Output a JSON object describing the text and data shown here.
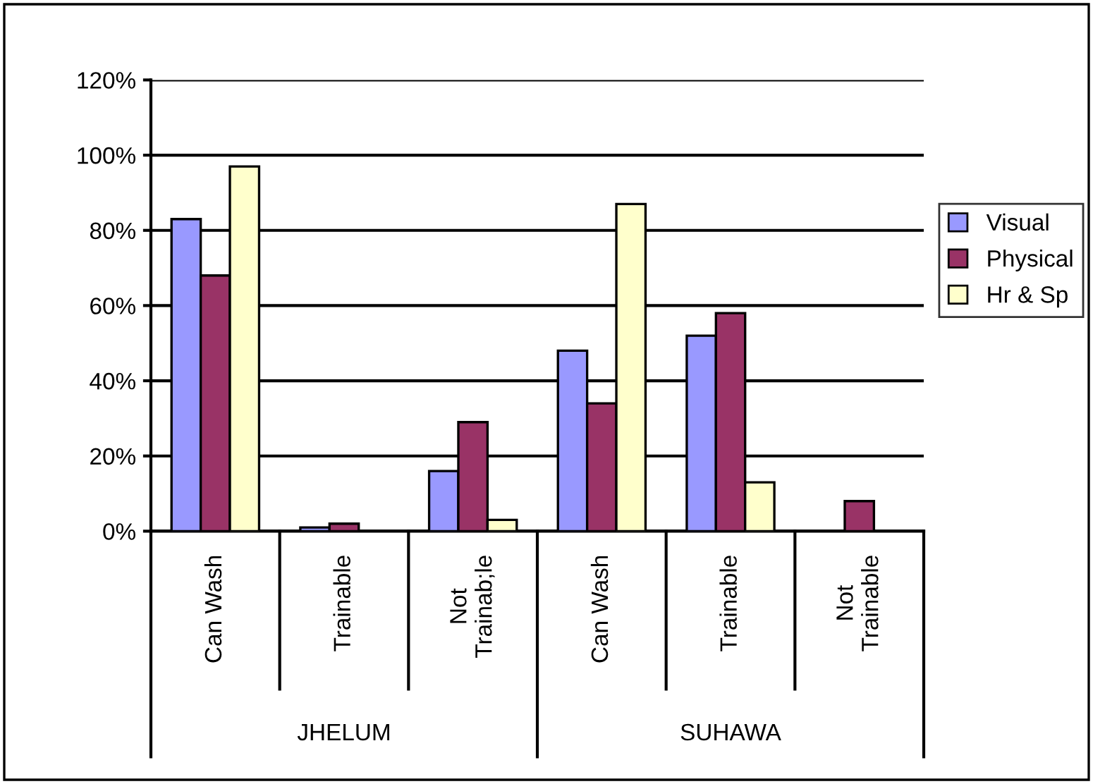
{
  "chart_data": {
    "type": "bar",
    "categories": [
      "Can Wash",
      "Trainable",
      "Not\nTrainab;le",
      "Can Wash",
      "Trainable",
      "Not\nTrainable"
    ],
    "series": [
      {
        "name": "Visual",
        "color": "#9999ff",
        "values": [
          83,
          1,
          16,
          48,
          52,
          null
        ]
      },
      {
        "name": "Physical",
        "color": "#993366",
        "values": [
          68,
          2,
          29,
          34,
          58,
          8
        ]
      },
      {
        "name": "Hr & Sp",
        "color": "#ffffcc",
        "values": [
          97,
          null,
          3,
          87,
          13,
          null
        ]
      }
    ],
    "annotations": [
      "JHELUM",
      "SUHAWA"
    ],
    "ylim": [
      0,
      120
    ],
    "yticks": [
      {
        "value": 0,
        "label": "0%"
      },
      {
        "value": 20,
        "label": "20%"
      },
      {
        "value": 40,
        "label": "40%"
      },
      {
        "value": 60,
        "label": "60%"
      },
      {
        "value": 80,
        "label": "80%"
      },
      {
        "value": 100,
        "label": "100%"
      },
      {
        "value": 120,
        "label": "120%"
      }
    ],
    "grid": "y",
    "legend": "right"
  }
}
